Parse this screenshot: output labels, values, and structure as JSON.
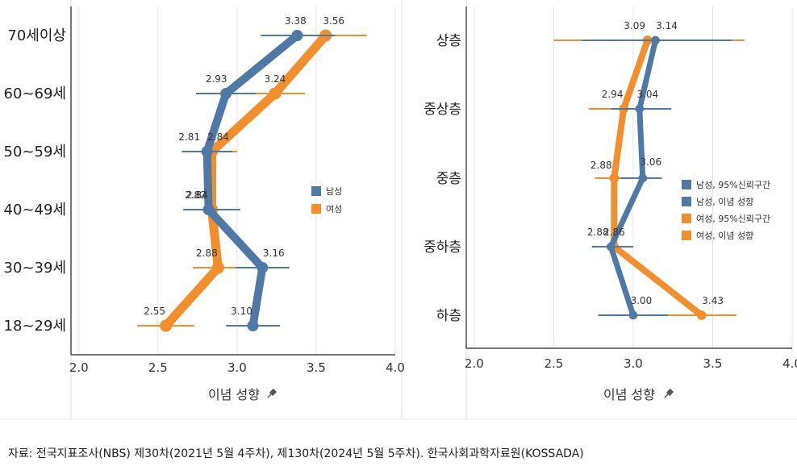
{
  "source_note": "자료: 전국지표조사(NBS) 제30차(2021년 5월 4주차), 제130차(2024년 5월 5주차). 한국사회과학자료원(KOSSADA)",
  "chart_data": [
    {
      "type": "line",
      "xlabel": "이념 성향",
      "xlim": [
        1.95,
        4.0
      ],
      "xticks": [
        "2.0",
        "2.5",
        "3.0",
        "3.5",
        "4.0"
      ],
      "categories": [
        "70세이상",
        "60~69세",
        "50~59세",
        "40~49세",
        "30~39세",
        "18~29세"
      ],
      "series": [
        {
          "name": "남성",
          "color": "#4e79a7",
          "values": [
            3.38,
            2.93,
            2.81,
            2.82,
            3.16,
            3.1
          ],
          "ci": [
            [
              3.15,
              3.62
            ],
            [
              2.74,
              3.12
            ],
            [
              2.65,
              2.97
            ],
            [
              2.66,
              3.02
            ],
            [
              2.99,
              3.33
            ],
            [
              2.93,
              3.27
            ]
          ],
          "labels": [
            "3.38",
            "2.93",
            "2.81",
            "2.82",
            "3.16",
            "3.10"
          ]
        },
        {
          "name": "여성",
          "color": "#f28e2b",
          "values": [
            3.56,
            3.24,
            2.84,
            2.84,
            2.88,
            2.55
          ],
          "ci": [
            [
              3.32,
              3.82
            ],
            [
              3.12,
              3.43
            ],
            [
              2.76,
              3.0
            ],
            [
              2.77,
              2.94
            ],
            [
              2.72,
              3.0
            ],
            [
              2.37,
              2.73
            ]
          ],
          "labels": [
            "3.56",
            "3.24",
            "2.84",
            "2.84",
            "2.88",
            "2.55"
          ]
        }
      ],
      "legend": {
        "placement": "center-right",
        "entries": [
          "남성",
          "여성"
        ]
      }
    },
    {
      "type": "line",
      "xlabel": "이념 성향",
      "xlim": [
        1.95,
        4.0
      ],
      "xticks": [
        "2.0",
        "2.5",
        "3.0",
        "3.5",
        "4.0"
      ],
      "categories": [
        "상층",
        "중상층",
        "중층",
        "중하층",
        "하층"
      ],
      "series": [
        {
          "name": "남성",
          "color": "#4e79a7",
          "values": [
            3.14,
            3.04,
            3.06,
            2.86,
            3.0
          ],
          "ci": [
            [
              2.68,
              3.62
            ],
            [
              2.86,
              3.24
            ],
            [
              2.92,
              3.18
            ],
            [
              2.74,
              3.0
            ],
            [
              2.78,
              3.22
            ]
          ],
          "labels": [
            "3.14",
            "3.04",
            "3.06",
            "2.86",
            "3.00"
          ]
        },
        {
          "name": "여성",
          "color": "#f28e2b",
          "values": [
            3.09,
            2.94,
            2.88,
            2.88,
            3.43
          ],
          "ci": [
            [
              2.5,
              3.7
            ],
            [
              2.72,
              3.14
            ],
            [
              2.76,
              3.0
            ],
            [
              2.78,
              2.98
            ],
            [
              3.22,
              3.65
            ]
          ],
          "labels": [
            "3.09",
            "2.94",
            "2.88",
            "2.88",
            "3.43"
          ]
        }
      ],
      "legend": {
        "placement": "center-right",
        "entries": [
          "남성, 95%신뢰구간",
          "남성, 이념 성향",
          "여성, 95%신뢰구간",
          "여성, 이념 성향"
        ]
      }
    }
  ]
}
